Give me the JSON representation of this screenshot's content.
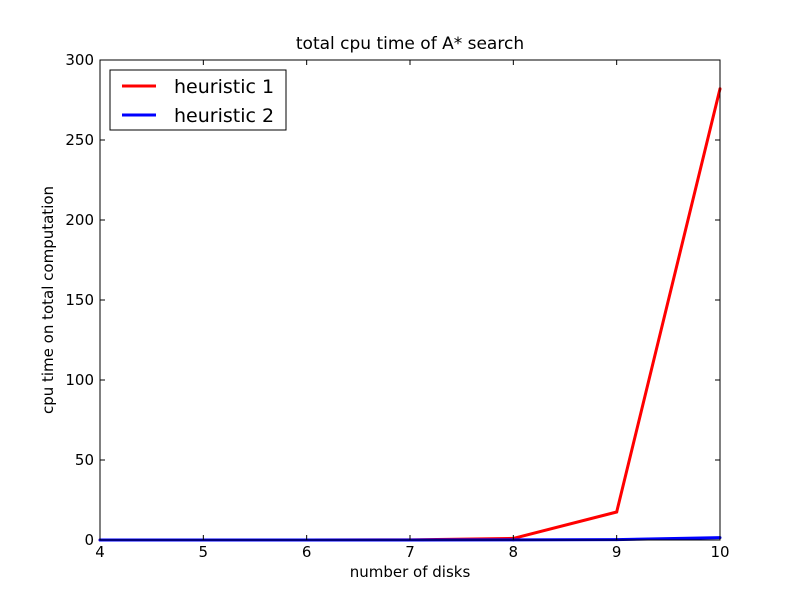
{
  "chart_data": {
    "type": "line",
    "title": "total cpu time of A* search",
    "xlabel": "number of disks",
    "ylabel": "cpu time on total computation",
    "xlim": [
      4,
      10
    ],
    "ylim": [
      0,
      300
    ],
    "x": [
      4,
      5,
      6,
      7,
      8,
      9,
      10
    ],
    "xticks": [
      "4",
      "5",
      "6",
      "7",
      "8",
      "9",
      "10"
    ],
    "yticks": [
      "0",
      "50",
      "100",
      "150",
      "200",
      "250",
      "300"
    ],
    "grid": false,
    "legend_position": "top-left",
    "series": [
      {
        "name": "heuristic 1",
        "color": "#ff0000",
        "values": [
          0.0,
          0.0,
          0.0,
          0.1,
          1.0,
          17.5,
          282.0
        ]
      },
      {
        "name": "heuristic 2",
        "color": "#0000ff",
        "values": [
          0.0,
          0.0,
          0.0,
          0.0,
          0.1,
          0.2,
          1.5
        ]
      }
    ]
  }
}
